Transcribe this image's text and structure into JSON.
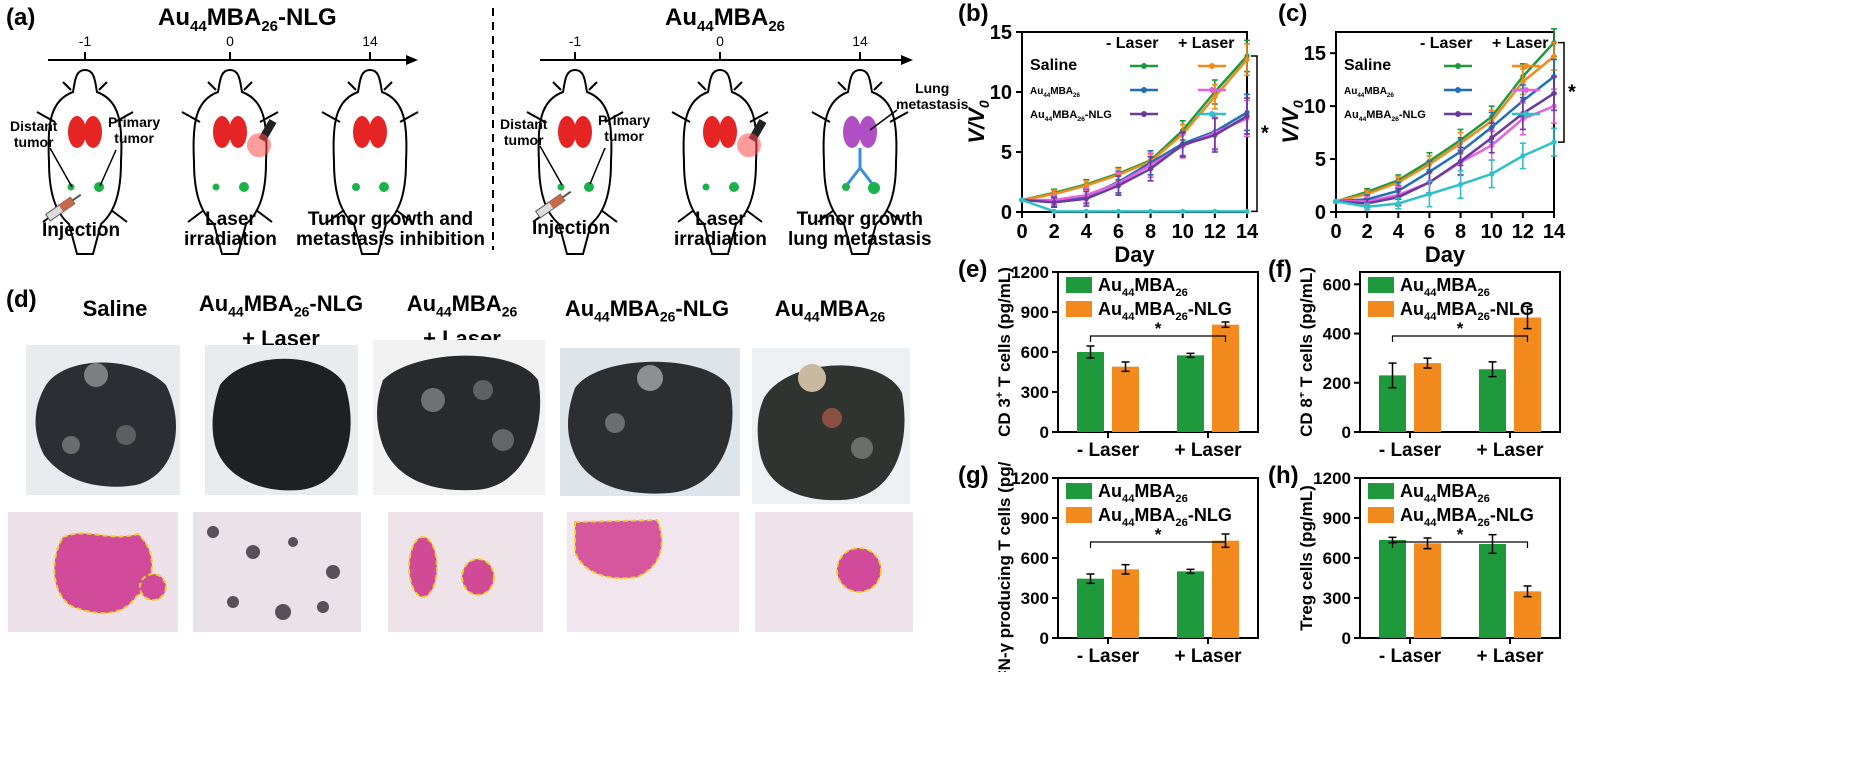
{
  "panel_labels": {
    "a": "(a)",
    "b": "(b)",
    "c": "(c)",
    "d": "(d)",
    "e": "(e)",
    "f": "(f)",
    "g": "(g)",
    "h": "(h)"
  },
  "panel_a": {
    "left": {
      "title_base": "Au",
      "t1": "44",
      "t2": "MBA",
      "t3": "26",
      "t4": "-NLG",
      "ticks": [
        "-1",
        "0",
        "14"
      ],
      "label_distant": "Distant\ntumor",
      "label_primary": "Primary\ntumor",
      "caption_injection": "Injection",
      "caption_laser": "Laser\nirradiation",
      "caption_growth": "Tumor growth and\nmetastasis inhibition"
    },
    "right": {
      "title_base": "Au",
      "t1": "44",
      "t2": "MBA",
      "t3": "26",
      "ticks": [
        "-1",
        "0",
        "14"
      ],
      "label_distant": "Distant\ntumor",
      "label_primary": "Primary\ntumor",
      "label_lung": "Lung\nmetastasis",
      "caption_injection": "Injection",
      "caption_laser": "Laser\nirradiation",
      "caption_growth": "Tumor growth\nlung metastasis"
    }
  },
  "panel_d": {
    "groups": [
      {
        "l1": "Saline",
        "sub": false
      },
      {
        "l1": "Au",
        "s1": "44",
        "m": "MBA",
        "s2": "26",
        "e": "-NLG",
        "l2": "+ Laser",
        "sub": true
      },
      {
        "l1": "Au",
        "s1": "44",
        "m": "MBA",
        "s2": "26",
        "e": "",
        "l2": "+ Laser",
        "sub": true
      },
      {
        "l1": "Au",
        "s1": "44",
        "m": "MBA",
        "s2": "26",
        "e": "-NLG",
        "l2": "",
        "sub": true
      },
      {
        "l1": "Au",
        "s1": "44",
        "m": "MBA",
        "s2": "26",
        "e": "",
        "l2": "",
        "sub": true
      }
    ]
  },
  "colors": {
    "green": "#1e9a3c",
    "orange": "#f28a1e",
    "blue": "#1f6fb5",
    "pink": "#e95fe0",
    "purple": "#6a3a9c",
    "cyan": "#2ec1c6",
    "bar_green": "#1e9a3c",
    "bar_orange": "#f28a1e"
  },
  "chart_data": [
    {
      "id": "b",
      "type": "line",
      "xlabel": "Day",
      "ylabel": "V/V0",
      "x": [
        0,
        2,
        4,
        6,
        8,
        10,
        12,
        14
      ],
      "xlim": [
        0,
        14
      ],
      "ylim": [
        0,
        15
      ],
      "xticks": [
        "0",
        "2",
        "4",
        "6",
        "8",
        "10",
        "12",
        "14"
      ],
      "yticks": [
        "0",
        "5",
        "10",
        "15"
      ],
      "legend_header_minus": "- Laser",
      "legend_header_plus": "+ Laser",
      "legend_rows": [
        "Saline",
        "Au44MBA26",
        "Au44MBA26-NLG"
      ],
      "series": [
        {
          "name": "Saline - Laser",
          "color": "green",
          "values": [
            1,
            1.6,
            2.3,
            3.2,
            4.3,
            6.8,
            10,
            13
          ],
          "err": [
            0.1,
            0.3,
            0.4,
            0.5,
            0.6,
            0.8,
            1,
            1.3
          ]
        },
        {
          "name": "Saline + Laser",
          "color": "orange",
          "values": [
            1,
            1.5,
            2.2,
            3.1,
            4.2,
            6.5,
            9.6,
            12.7
          ],
          "err": [
            0.1,
            0.3,
            0.4,
            0.5,
            0.6,
            0.8,
            1,
            1.3
          ]
        },
        {
          "name": "Au44MBA26 - Laser",
          "color": "blue",
          "values": [
            1,
            0.9,
            1.3,
            2.5,
            4.1,
            5.7,
            6.7,
            8.3
          ],
          "err": [
            0.1,
            0.4,
            0.6,
            0.9,
            1,
            1,
            1.5,
            1.5
          ]
        },
        {
          "name": "Au44MBA26 + Laser",
          "color": "pink",
          "values": [
            1,
            1,
            1.4,
            2.4,
            3.9,
            5.5,
            6.6,
            7.8
          ],
          "err": [
            0.1,
            0.4,
            0.6,
            0.9,
            1,
            1,
            1.3,
            1.5
          ]
        },
        {
          "name": "Au44MBA26-NLG - Laser",
          "color": "purple",
          "values": [
            1,
            0.8,
            1.1,
            2.2,
            3.6,
            5.6,
            6.4,
            8
          ],
          "err": [
            0.1,
            0.4,
            0.6,
            0.8,
            1,
            1,
            1.4,
            1.5
          ]
        },
        {
          "name": "Au44MBA26-NLG + Laser",
          "color": "cyan",
          "values": [
            1,
            0.05,
            0.05,
            0.05,
            0.05,
            0.05,
            0.05,
            0.05
          ],
          "err": [
            0.1,
            0,
            0,
            0,
            0,
            0,
            0,
            0
          ]
        }
      ],
      "annotation": "*"
    },
    {
      "id": "c",
      "type": "line",
      "xlabel": "Day",
      "ylabel": "V/V0",
      "x": [
        0,
        2,
        4,
        6,
        8,
        10,
        12,
        14
      ],
      "xlim": [
        0,
        14
      ],
      "ylim": [
        0,
        17
      ],
      "xticks": [
        "0",
        "2",
        "4",
        "6",
        "8",
        "10",
        "12",
        "14"
      ],
      "yticks": [
        "0",
        "5",
        "10",
        "15"
      ],
      "legend_header_minus": "- Laser",
      "legend_header_plus": "+ Laser",
      "legend_rows": [
        "Saline",
        "Au44MBA26",
        "Au44MBA26-NLG"
      ],
      "series": [
        {
          "name": "Saline - Laser",
          "color": "green",
          "values": [
            1,
            1.9,
            3,
            4.8,
            6.8,
            9,
            12.8,
            16
          ],
          "err": [
            0.1,
            0.3,
            0.5,
            0.8,
            1,
            1,
            1.2,
            1.3
          ]
        },
        {
          "name": "Saline + Laser",
          "color": "orange",
          "values": [
            1,
            1.7,
            2.8,
            4.5,
            6.5,
            8.6,
            12.3,
            14.7
          ],
          "err": [
            0.1,
            0.3,
            0.5,
            0.8,
            1,
            1,
            1.2,
            1.3
          ]
        },
        {
          "name": "Au44MBA26 - Laser",
          "color": "blue",
          "values": [
            1,
            1.2,
            2,
            3.8,
            5.7,
            8,
            10.5,
            12.8
          ],
          "err": [
            0.1,
            0.4,
            0.8,
            1,
            1.3,
            1.4,
            1.5,
            1.6
          ]
        },
        {
          "name": "Au44MBA26 + Laser",
          "color": "pink",
          "values": [
            1,
            1,
            1.6,
            2.8,
            4.7,
            6.3,
            8.8,
            10
          ],
          "err": [
            0.1,
            0.4,
            0.8,
            1,
            1.2,
            1.4,
            1.5,
            1.6
          ]
        },
        {
          "name": "Au44MBA26-NLG - Laser",
          "color": "purple",
          "values": [
            1,
            0.8,
            1.4,
            2.8,
            4.8,
            7,
            9.3,
            11.2
          ],
          "err": [
            0.1,
            0.4,
            0.8,
            1,
            1.3,
            1.4,
            1.5,
            1.6
          ]
        },
        {
          "name": "Au44MBA26-NLG + Laser",
          "color": "cyan",
          "values": [
            1,
            0.5,
            0.8,
            1.7,
            2.6,
            3.6,
            5.3,
            6.6
          ],
          "err": [
            0.1,
            0.3,
            0.5,
            1.2,
            1.3,
            1.3,
            1.2,
            1.3
          ]
        }
      ],
      "annotation": "*"
    },
    {
      "id": "e",
      "type": "bar",
      "categories": [
        "- Laser",
        "+ Laser"
      ],
      "ylabel": "CD 3+ T cells (pg/mL)",
      "ylim": [
        0,
        1200
      ],
      "yticks": [
        "0",
        "300",
        "600",
        "900",
        "1200"
      ],
      "series": [
        {
          "name": "Au44MBA26",
          "color": "bar_green",
          "values": [
            600,
            575
          ],
          "err": [
            45,
            15
          ]
        },
        {
          "name": "Au44MBA26-NLG",
          "color": "bar_orange",
          "values": [
            490,
            805
          ],
          "err": [
            35,
            20
          ]
        }
      ],
      "annotation": "*"
    },
    {
      "id": "f",
      "type": "bar",
      "categories": [
        "- Laser",
        "+ Laser"
      ],
      "ylabel": "CD 8+ T cells (pg/mL)",
      "ylim": [
        0,
        650
      ],
      "yticks": [
        "0",
        "200",
        "400",
        "600"
      ],
      "series": [
        {
          "name": "Au44MBA26",
          "color": "bar_green",
          "values": [
            230,
            255
          ],
          "err": [
            50,
            30
          ]
        },
        {
          "name": "Au44MBA26-NLG",
          "color": "bar_orange",
          "values": [
            280,
            465
          ],
          "err": [
            20,
            45
          ]
        }
      ],
      "annotation": "*"
    },
    {
      "id": "g",
      "type": "bar",
      "categories": [
        "- Laser",
        "+ Laser"
      ],
      "ylabel": "IFN-γ producing T cells (pg/mL)",
      "ylim": [
        0,
        1200
      ],
      "yticks": [
        "0",
        "300",
        "600",
        "900",
        "1200"
      ],
      "series": [
        {
          "name": "Au44MBA26",
          "color": "bar_green",
          "values": [
            445,
            500
          ],
          "err": [
            35,
            15
          ]
        },
        {
          "name": "Au44MBA26-NLG",
          "color": "bar_orange",
          "values": [
            515,
            730
          ],
          "err": [
            35,
            50
          ]
        }
      ],
      "annotation": "*"
    },
    {
      "id": "h",
      "type": "bar",
      "categories": [
        "- Laser",
        "+ Laser"
      ],
      "ylabel": "Treg cells (pg/mL)",
      "ylim": [
        0,
        1200
      ],
      "yticks": [
        "0",
        "300",
        "600",
        "900",
        "1200"
      ],
      "series": [
        {
          "name": "Au44MBA26",
          "color": "bar_green",
          "values": [
            735,
            705
          ],
          "err": [
            20,
            70
          ]
        },
        {
          "name": "Au44MBA26-NLG",
          "color": "bar_orange",
          "values": [
            710,
            350
          ],
          "err": [
            40,
            40
          ]
        }
      ],
      "annotation": "*"
    }
  ]
}
